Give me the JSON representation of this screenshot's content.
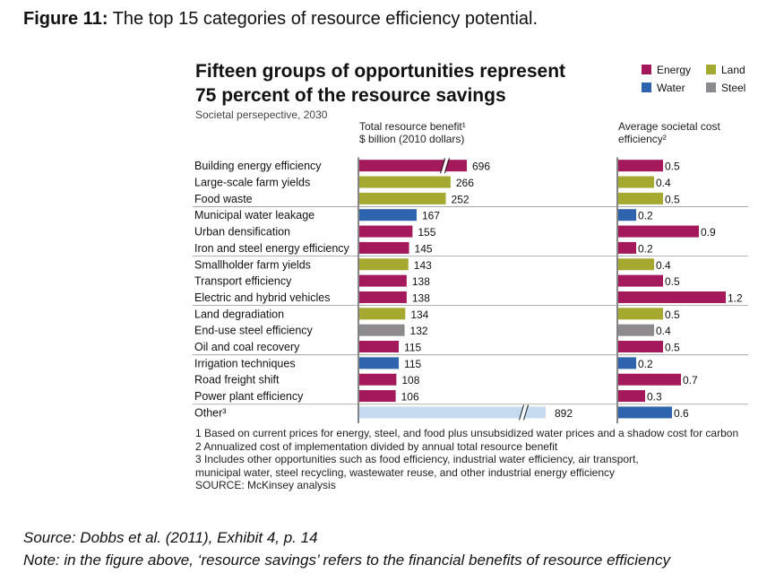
{
  "caption": {
    "figure_label": "Figure 11:",
    "text": "The top 15 categories of resource efficiency potential."
  },
  "chart_data": {
    "type": "bar",
    "title_line1": "Fifteen groups of opportunities represent",
    "title_line2": "75 percent of the resource savings",
    "subtitle": "Societal persepective, 2030",
    "legend": [
      {
        "name": "Energy",
        "color": "#a3195b"
      },
      {
        "name": "Land",
        "color": "#a5a92f"
      },
      {
        "name": "Water",
        "color": "#2e63ae"
      },
      {
        "name": "Steel",
        "color": "#8c8a8e"
      }
    ],
    "left_panel": {
      "heading1": "Total resource benefit¹",
      "heading2": "$ billion (2010 dollars)"
    },
    "right_panel": {
      "heading1": "Average societal cost",
      "heading2": "efficiency²"
    },
    "categories": [
      "Building energy efficiency",
      "Large-scale farm yields",
      "Food waste",
      "Municipal water leakage",
      "Urban densification",
      "Iron and steel energy efficiency",
      "Smallholder farm yields",
      "Transport efficiency",
      "Electric and hybrid vehicles",
      "Land degradiation",
      "End-use steel efficiency",
      "Oil and coal recovery",
      "Irrigation techniques",
      "Road freight shift",
      "Power plant efficiency",
      "Other³"
    ],
    "groups": [
      "Energy",
      "Land",
      "Land",
      "Water",
      "Energy",
      "Energy",
      "Land",
      "Energy",
      "Energy",
      "Land",
      "Steel",
      "Energy",
      "Water",
      "Energy",
      "Energy",
      "Other"
    ],
    "benefit_values": [
      696,
      266,
      252,
      167,
      155,
      145,
      143,
      138,
      138,
      134,
      132,
      115,
      115,
      108,
      106,
      892
    ],
    "benefit_labels": [
      "696",
      "266",
      "252",
      "167",
      "155",
      "145",
      "143",
      "138",
      "138",
      "134",
      "132",
      "115",
      "115",
      "108",
      "106",
      "892"
    ],
    "broken_axis": [
      true,
      false,
      false,
      false,
      false,
      false,
      false,
      false,
      false,
      false,
      false,
      false,
      false,
      false,
      false,
      true
    ],
    "cost_values": [
      0.5,
      0.4,
      0.5,
      0.2,
      0.9,
      0.2,
      0.4,
      0.5,
      1.2,
      0.5,
      0.4,
      0.5,
      0.2,
      0.7,
      0.3,
      0.6
    ],
    "cost_labels": [
      "0.5",
      "0.4",
      "0.5",
      "0.2",
      "0.9",
      "0.2",
      "0.4",
      "0.5",
      "1.2",
      "0.5",
      "0.4",
      "0.5",
      "0.2",
      "0.7",
      "0.3",
      "0.6"
    ],
    "other_colors": {
      "benefit": "#c4dbf0",
      "cost": "#2e63ae"
    },
    "group_separators_after": [
      2,
      5,
      8,
      11,
      14
    ]
  },
  "footnotes": [
    "1 Based on current prices for energy, steel, and food plus unsubsidized water prices and a shadow cost for carbon",
    "2 Annualized cost of implementation divided by annual total resource benefit",
    "3 Includes other opportunities such as food efficiency, industrial water efficiency, air transport,",
    "municipal water, steel recycling, wastewater reuse, and other industrial energy efficiency",
    "SOURCE: McKinsey analysis"
  ],
  "source_line": "Source: Dobbs et al. (2011), Exhibit 4, p. 14",
  "note_line": "Note: in the figure above, ‘resource savings’ refers to the financial benefits of resource efficiency"
}
